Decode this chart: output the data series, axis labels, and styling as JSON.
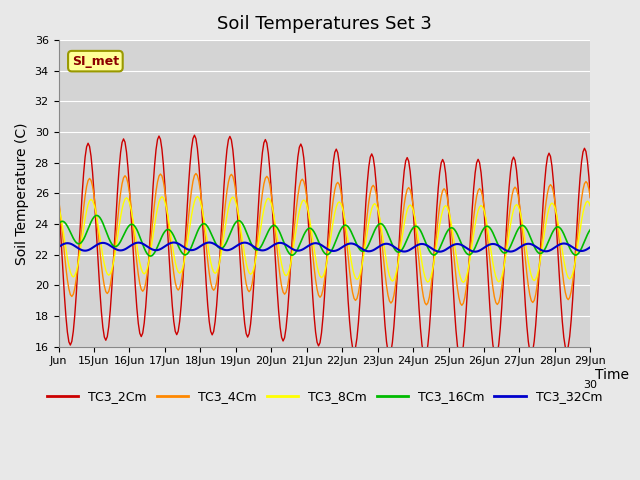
{
  "title": "Soil Temperatures Set 3",
  "xlabel": "Time",
  "ylabel": "Soil Temperature (C)",
  "ylim": [
    16,
    36
  ],
  "bg_color": "#e8e8e8",
  "plot_bg_color": "#d4d4d4",
  "line_colors": {
    "TC3_2Cm": "#cc0000",
    "TC3_4Cm": "#ff8800",
    "TC3_8Cm": "#ffff00",
    "TC3_16Cm": "#00bb00",
    "TC3_32Cm": "#0000cc"
  },
  "legend_label": "SI_met",
  "title_fontsize": 13,
  "axis_fontsize": 10,
  "tick_fontsize": 8,
  "xtick_positions": [
    0,
    24,
    48,
    72,
    96,
    120,
    144,
    168,
    192,
    216,
    240,
    264,
    288,
    312,
    336,
    360
  ],
  "xtick_labels": [
    "Jun",
    "15Jun",
    "16Jun",
    "17Jun",
    "18Jun",
    "19Jun",
    "20Jun",
    "21Jun",
    "22Jun",
    "23Jun",
    "24Jun",
    "25Jun",
    "26Jun",
    "27Jun",
    "28Jun",
    "29Jun"
  ]
}
